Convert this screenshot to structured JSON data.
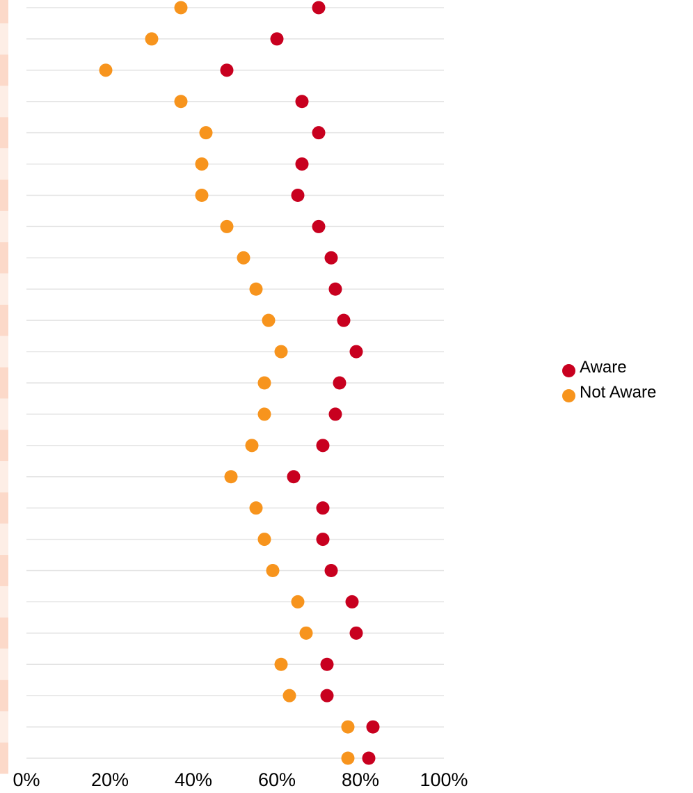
{
  "colors": {
    "aware": "#c8001f",
    "not_aware": "#f7941d",
    "grid": "#e3e3e3",
    "band_a": "#fcd9c9",
    "band_b": "#fdeee6"
  },
  "chart_data": {
    "type": "scatter",
    "title": "",
    "xlabel": "",
    "ylabel": "",
    "xlim": [
      0,
      100
    ],
    "x_ticks": [
      "0%",
      "20%",
      "40%",
      "60%",
      "80%",
      "100%"
    ],
    "grid": true,
    "legend_position": "right",
    "categories_count": 25,
    "series": [
      {
        "name": "Aware",
        "values": [
          70,
          60,
          48,
          66,
          70,
          66,
          65,
          70,
          73,
          74,
          76,
          79,
          75,
          74,
          71,
          64,
          71,
          71,
          73,
          78,
          79,
          72,
          72,
          83,
          82
        ]
      },
      {
        "name": "Not Aware",
        "values": [
          37,
          30,
          19,
          37,
          43,
          42,
          42,
          48,
          52,
          55,
          58,
          61,
          57,
          57,
          54,
          49,
          55,
          57,
          59,
          65,
          67,
          61,
          63,
          77,
          77
        ]
      }
    ]
  }
}
